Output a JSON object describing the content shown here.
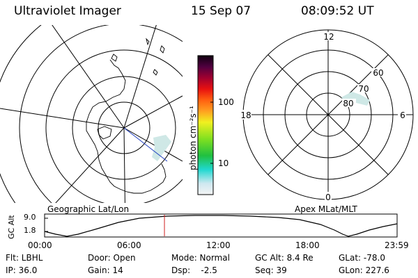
{
  "header": {
    "instrument": "Ultraviolet Imager",
    "date": "15 Sep 07",
    "time": "08:09:52 UT"
  },
  "colorbar": {
    "unit": "photon cm⁻²s⁻¹",
    "ticks": [
      "100",
      "10"
    ]
  },
  "apex_plot": {
    "mlt_labels": {
      "top": "12",
      "left": "18",
      "right": "6",
      "bottom": "0"
    },
    "lat_labels": [
      "60",
      "70",
      "80"
    ]
  },
  "panel_labels": {
    "left": "Geographic Lat/Lon",
    "right": "Apex MLat/MLT"
  },
  "altitude_plot": {
    "ylabel": "GC Alt",
    "yticks": [
      "9.0",
      "1.8"
    ],
    "xticks": [
      "00:00",
      "06:00",
      "12:00",
      "18:00",
      "23:59"
    ],
    "current_time_hours": 8.16
  },
  "footer": {
    "flt": "Flt: LBHL",
    "ip": "IP: 36.0",
    "door": "Door: Open",
    "gain": "Gain: 14",
    "mode": "Mode: Normal",
    "dsp": "Dsp:    -2.5",
    "gc_alt": "GC Alt: 8.4 Re",
    "seq": "Seq: 39",
    "glat": "GLat: -78.0",
    "glon": "GLon: 227.6"
  },
  "colors": {
    "aurora": "#cfe8e6",
    "marker": "#d02020",
    "track": "#2040c0"
  }
}
